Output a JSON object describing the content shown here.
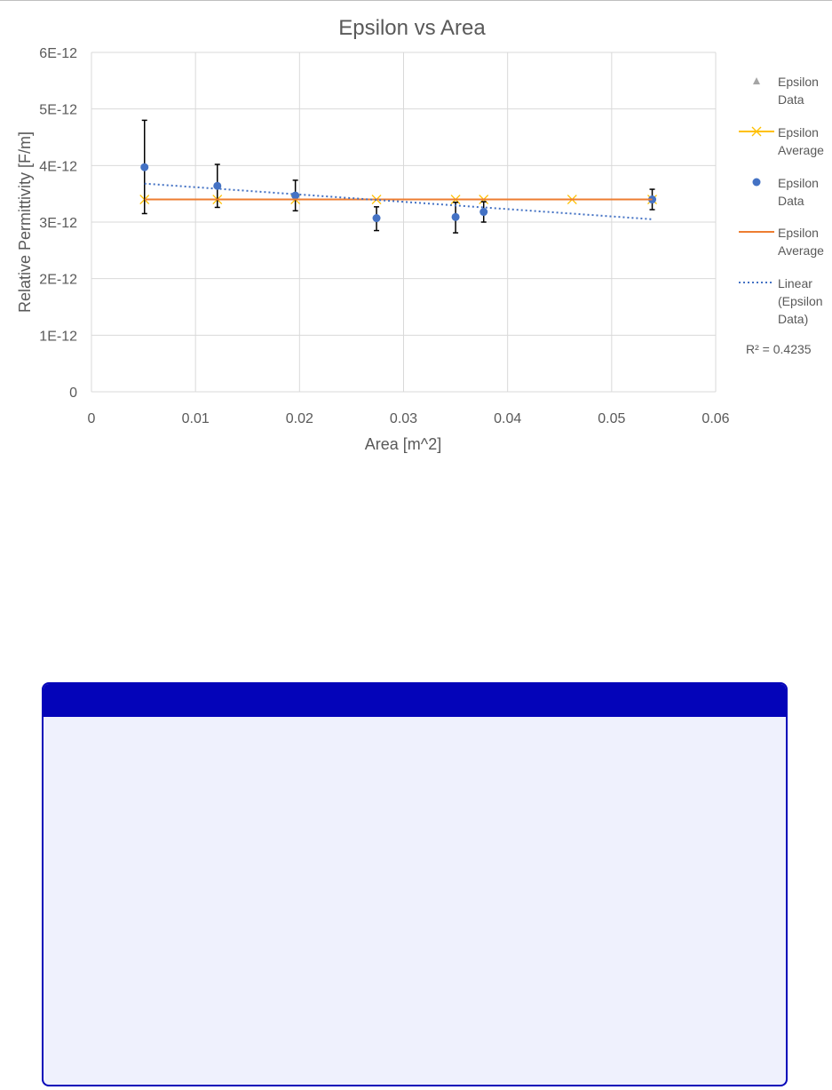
{
  "chart_data": {
    "type": "scatter",
    "title": "Epsilon vs Area",
    "xlabel": "Area [m^2]",
    "ylabel": "Relative Permittivity [F/m]",
    "xlim": [
      0,
      0.06
    ],
    "ylim": [
      0,
      6e-12
    ],
    "x_ticks": [
      0,
      0.01,
      0.02,
      0.03,
      0.04,
      0.05,
      0.06
    ],
    "x_tick_labels": [
      "0",
      "0.01",
      "0.02",
      "0.03",
      "0.04",
      "0.05",
      "0.06"
    ],
    "y_ticks": [
      0,
      1e-12,
      2e-12,
      3e-12,
      4e-12,
      5e-12,
      6e-12
    ],
    "y_tick_labels": [
      "0",
      "1E-12",
      "2E-12",
      "3E-12",
      "4E-12",
      "5E-12",
      "6E-12"
    ],
    "grid": true,
    "legend_position": "right",
    "series": [
      {
        "name": "Epsilon Data",
        "legend_lines": [
          "Epsilon",
          "Data"
        ],
        "kind": "triangle-marker",
        "color": "#a5a5a5",
        "x": [],
        "y": []
      },
      {
        "name": "Epsilon Average",
        "legend_lines": [
          "Epsilon",
          "Average"
        ],
        "kind": "x-marker-line",
        "color": "#ffc000",
        "x": [
          0.0051,
          0.0121,
          0.0196,
          0.0274,
          0.035,
          0.0377,
          0.0462,
          0.0539
        ],
        "y": [
          3.4e-12,
          3.4e-12,
          3.4e-12,
          3.4e-12,
          3.4e-12,
          3.4e-12,
          3.4e-12,
          3.4e-12
        ]
      },
      {
        "name": "Epsilon Data",
        "legend_lines": [
          "Epsilon",
          "Data"
        ],
        "kind": "circle-marker",
        "color": "#4472c4",
        "x": [
          0.0051,
          0.0121,
          0.0196,
          0.0274,
          0.035,
          0.0377,
          0.0539
        ],
        "y": [
          3.97e-12,
          3.64e-12,
          3.47e-12,
          3.07e-12,
          3.09e-12,
          3.18e-12,
          3.4e-12
        ],
        "error_plus": [
          8.3e-13,
          3.8e-13,
          2.7e-13,
          2e-13,
          2.6e-13,
          1.8e-13,
          1.8e-13
        ],
        "error_minus": [
          8.2e-13,
          3.8e-13,
          2.7e-13,
          2.2e-13,
          2.8e-13,
          1.8e-13,
          1.8e-13
        ]
      },
      {
        "name": "Epsilon Average",
        "legend_lines": [
          "Epsilon",
          "Average"
        ],
        "kind": "line",
        "color": "#ed7d31",
        "x": [
          0.0051,
          0.0539
        ],
        "y": [
          3.4e-12,
          3.4e-12
        ]
      },
      {
        "name": "Linear (Epsilon Data)",
        "legend_lines": [
          "Linear",
          "(Epsilon",
          "Data)"
        ],
        "kind": "dotted-trendline",
        "color": "#4472c4",
        "x": [
          0.0051,
          0.0539
        ],
        "y": [
          3.68e-12,
          3.05e-12
        ]
      }
    ],
    "annotation": "R² = 0.4235"
  },
  "panel": {
    "header_text": "",
    "header_color": "#0404b9",
    "body_color": "#eff1fd"
  }
}
